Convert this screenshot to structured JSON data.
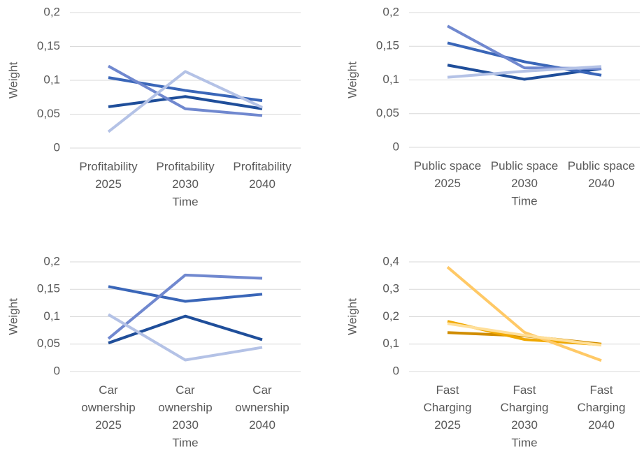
{
  "chart_data": [
    {
      "type": "line",
      "x_label": "Time",
      "y_label": "Weight",
      "grid": true,
      "categories": [
        "Profitability\n2025",
        "Profitability\n2030",
        "Profitability\n2040"
      ],
      "ylim": [
        0,
        0.2
      ],
      "yticks": [
        0,
        {
          "value": 0.05,
          "label": "0,05"
        },
        {
          "value": 0.1,
          "label": "0,1"
        },
        {
          "value": 0.15,
          "label": "0,15"
        },
        {
          "value": 0.2,
          "label": "0,2"
        }
      ],
      "series": [
        {
          "color": "#1f4e9a",
          "values": [
            0.061,
            0.076,
            0.058
          ]
        },
        {
          "color": "#3a66b8",
          "values": [
            0.104,
            0.085,
            0.07
          ]
        },
        {
          "color": "#7088cf",
          "values": [
            0.121,
            0.058,
            0.048
          ]
        },
        {
          "color": "#b4c2e6",
          "values": [
            0.024,
            0.113,
            0.06
          ]
        }
      ]
    },
    {
      "type": "line",
      "x_label": "Time",
      "y_label": "Weight",
      "grid": true,
      "categories": [
        "Public space\n2025",
        "Public space\n2030",
        "Public space\n2040"
      ],
      "ylim": [
        0,
        0.2
      ],
      "yticks": [
        0,
        {
          "value": 0.05,
          "label": "0,05"
        },
        {
          "value": 0.1,
          "label": "0,1"
        },
        {
          "value": 0.15,
          "label": "0,15"
        },
        {
          "value": 0.2,
          "label": "0,2"
        }
      ],
      "series": [
        {
          "color": "#1f4e9a",
          "values": [
            0.122,
            0.101,
            0.117
          ]
        },
        {
          "color": "#3a66b8",
          "values": [
            0.155,
            0.127,
            0.107
          ]
        },
        {
          "color": "#7088cf",
          "values": [
            0.18,
            0.118,
            0.117
          ]
        },
        {
          "color": "#b4c2e6",
          "values": [
            0.104,
            0.113,
            0.12
          ]
        }
      ]
    },
    {
      "type": "line",
      "x_label": "Time",
      "y_label": "Weight",
      "grid": true,
      "categories": [
        "Car\nownership\n2025",
        "Car\nownership\n2030",
        "Car\nownership\n2040"
      ],
      "ylim": [
        0,
        0.2
      ],
      "yticks": [
        0,
        {
          "value": 0.05,
          "label": "0,05"
        },
        {
          "value": 0.1,
          "label": "0,1"
        },
        {
          "value": 0.15,
          "label": "0,15"
        },
        {
          "value": 0.2,
          "label": "0,2"
        }
      ],
      "series": [
        {
          "color": "#1f4e9a",
          "values": [
            0.052,
            0.101,
            0.058
          ]
        },
        {
          "color": "#3a66b8",
          "values": [
            0.155,
            0.128,
            0.141
          ]
        },
        {
          "color": "#7088cf",
          "values": [
            0.06,
            0.176,
            0.17
          ]
        },
        {
          "color": "#b4c2e6",
          "values": [
            0.104,
            0.021,
            0.044
          ]
        }
      ]
    },
    {
      "type": "line",
      "x_label": "Time",
      "y_label": "Weight",
      "grid": true,
      "categories": [
        "Fast\nCharging\n2025",
        "Fast\nCharging\n2030",
        "Fast\nCharging\n2040"
      ],
      "ylim": [
        0,
        0.4
      ],
      "yticks": [
        0,
        {
          "value": 0.1,
          "label": "0,1"
        },
        {
          "value": 0.2,
          "label": "0,2"
        },
        {
          "value": 0.3,
          "label": "0,3"
        },
        {
          "value": 0.4,
          "label": "0,4"
        }
      ],
      "series": [
        {
          "color": "#d08c00",
          "values": [
            0.142,
            0.13,
            0.1
          ]
        },
        {
          "color": "#f0a800",
          "values": [
            0.183,
            0.117,
            0.098
          ]
        },
        {
          "color": "#ffc966",
          "values": [
            0.381,
            0.143,
            0.04
          ]
        },
        {
          "color": "#ffdf99",
          "values": [
            0.175,
            0.132,
            0.096
          ]
        }
      ]
    }
  ]
}
